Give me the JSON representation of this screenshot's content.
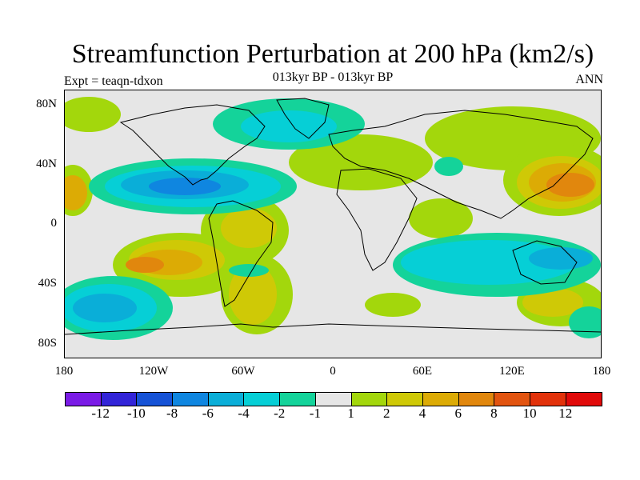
{
  "title": "Streamfunction Perturbation at 200 hPa (km2/s)",
  "subtitle": "013kyr BP - 013kyr BP",
  "left_string": "Expt = teaqn-tdxon",
  "right_string": "ANN",
  "lat_labels": [
    "80N",
    "40N",
    "0",
    "40S",
    "80S"
  ],
  "lon_labels": [
    "180",
    "120W",
    "60W",
    "0",
    "60E",
    "120E",
    "180"
  ],
  "colorbar": {
    "colors": [
      "#7a1be6",
      "#3224d8",
      "#1652d6",
      "#0f86e0",
      "#0aaed8",
      "#06cfd6",
      "#14d39a",
      "#e6e6e6",
      "#a3d70c",
      "#cfc906",
      "#dcab05",
      "#e1870d",
      "#e25410",
      "#e2320b",
      "#e10a0a"
    ],
    "labels": [
      "-12",
      "-10",
      "-8",
      "-6",
      "-4",
      "-2",
      "-1",
      "1",
      "2",
      "4",
      "6",
      "8",
      "10",
      "12"
    ]
  }
}
